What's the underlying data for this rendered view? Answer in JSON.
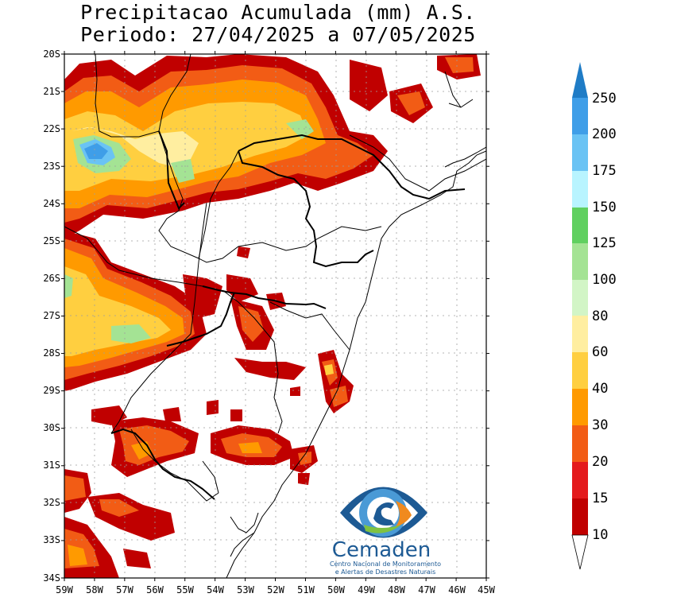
{
  "title": {
    "line1": "Precipitacao Acumulada (mm) A.S.",
    "line2": "Periodo: 27/04/2025 a 07/05/2025"
  },
  "lat_labels": [
    "20S",
    "21S",
    "22S",
    "23S",
    "24S",
    "25S",
    "26S",
    "27S",
    "28S",
    "29S",
    "30S",
    "31S",
    "32S",
    "33S",
    "34S"
  ],
  "lon_labels": [
    "59W",
    "58W",
    "57W",
    "56W",
    "55W",
    "54W",
    "53W",
    "52W",
    "51W",
    "50W",
    "49W",
    "48W",
    "47W",
    "46W",
    "45W"
  ],
  "colorbar": {
    "labels": [
      "10",
      "15",
      "20",
      "30",
      "40",
      "60",
      "80",
      "100",
      "125",
      "150",
      "175",
      "200",
      "250"
    ],
    "colors": [
      "#c00000",
      "#e41a1c",
      "#f25c15",
      "#ff9a00",
      "#ffcf40",
      "#ffeea0",
      "#d2f5c6",
      "#a4e394",
      "#60d060",
      "#b8f4ff",
      "#6ac3f4",
      "#3f9ee8",
      "#1f7cc6",
      "#1d5fae"
    ]
  },
  "logo": {
    "name": "Cemaden",
    "subtitle_line1": "Centro Nacional de Monitoramento",
    "subtitle_line2": "e Alertas de Desastres Naturais"
  }
}
